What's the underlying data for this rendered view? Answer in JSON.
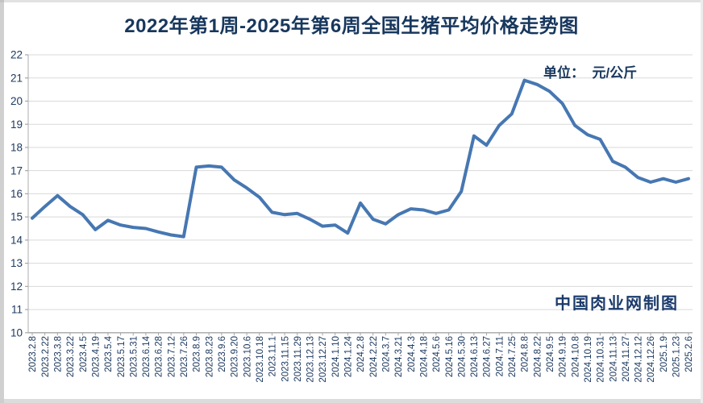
{
  "page": {
    "title": "2022年第1周-2025年第6周全国生猪平均价格走势图",
    "unit_label": "单位：  元/公斤",
    "watermark": "中国肉业网制图"
  },
  "chart_data": {
    "type": "line",
    "title": "2022年第1周-2025年第6周全国生猪平均价格走势图",
    "unit_label": "单位：  元/公斤",
    "watermark": "中国肉业网制图",
    "xlabel": "",
    "ylabel": "元/公斤",
    "ylim": [
      10,
      22
    ],
    "ytick_interval": 1,
    "ytick_labels": [
      "10",
      "11",
      "12",
      "13",
      "14",
      "15",
      "16",
      "17",
      "18",
      "19",
      "20",
      "21",
      "22"
    ],
    "grid": "horizontal",
    "legend": "none",
    "x_label_rotation": -90,
    "categories": [
      "2023.2.8",
      "2023.2.22",
      "2023.3.8",
      "2023.3.22",
      "2023.4.5",
      "2023.4.19",
      "2023.5.4",
      "2023.5.17",
      "2023.5.31",
      "2023.6.14",
      "2023.6.28",
      "2023.7.12",
      "2023.7.26",
      "2023.8.9",
      "2023.8.23",
      "2023.9.6",
      "2023.9.20",
      "2023.10.6",
      "2023.10.18",
      "2023.11.1",
      "2023.11.15",
      "2023.11.29",
      "2023.12.13",
      "2023.12.27",
      "2024.1.10",
      "2024.1.24",
      "2024.2.8",
      "2024.2.22",
      "2024.3.7",
      "2024.3.21",
      "2024.4.3",
      "2024.4.18",
      "2024.5.6",
      "2024.5.16",
      "2024.5.30",
      "2024.6.13",
      "2024.6.27",
      "2024.7.11",
      "2024.7.25",
      "2024.8.8",
      "2024.8.22",
      "2024.9.5",
      "2024.9.19",
      "2024.10.8",
      "2024.10.19",
      "2024.10.31",
      "2024.11.13",
      "2024.11.27",
      "2024.12.12",
      "2024.12.26",
      "2025.1.9",
      "2025.1.23",
      "2025.2.6"
    ],
    "series": [
      {
        "name": "全国生猪平均价格",
        "values": [
          14.95,
          15.45,
          15.92,
          15.45,
          15.1,
          14.45,
          14.85,
          14.65,
          14.55,
          14.5,
          14.35,
          14.22,
          14.15,
          17.15,
          17.2,
          17.15,
          16.6,
          16.25,
          15.85,
          15.2,
          15.1,
          15.15,
          14.9,
          14.6,
          14.65,
          14.3,
          15.6,
          14.9,
          14.7,
          15.1,
          15.35,
          15.3,
          15.15,
          15.3,
          16.1,
          18.5,
          18.1,
          18.95,
          19.45,
          20.9,
          20.72,
          20.42,
          19.9,
          18.95,
          18.55,
          18.35,
          17.4,
          17.15,
          16.7,
          16.5,
          16.65,
          16.5,
          16.65
        ]
      }
    ],
    "colors": {
      "line": "#4677b2",
      "grid": "#d9d9d9",
      "axis": "#a6a6a6",
      "tick_text": "#1e3a60",
      "title": "#17375d",
      "background": "#ffffff"
    }
  }
}
